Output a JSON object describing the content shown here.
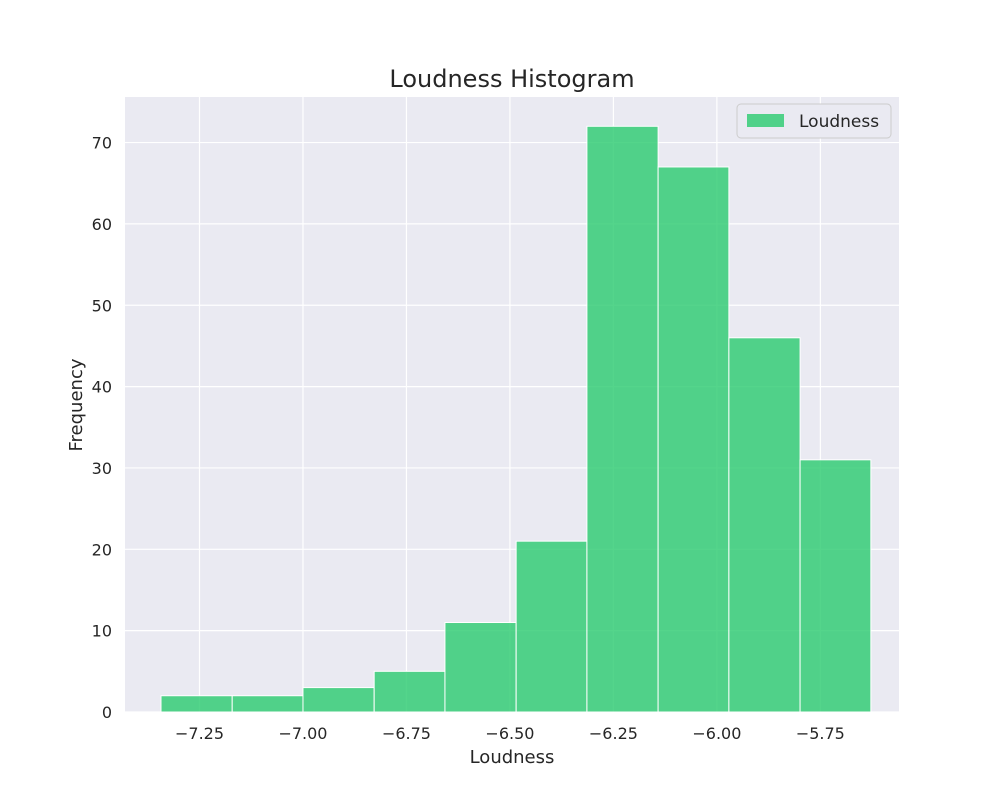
{
  "chart_data": {
    "type": "bar",
    "title": "Loudness Histogram",
    "xlabel": "Loudness",
    "ylabel": "Frequency",
    "xlim": [
      -7.43,
      -5.56
    ],
    "ylim": [
      0,
      75.6
    ],
    "x_ticks": [
      -7.25,
      -7.0,
      -6.75,
      -6.5,
      -6.25,
      -6.0,
      -5.75
    ],
    "x_tick_labels": [
      "−7.25",
      "−7.00",
      "−6.75",
      "−6.50",
      "−6.25",
      "−6.00",
      "−5.75"
    ],
    "y_ticks": [
      0,
      10,
      20,
      30,
      40,
      50,
      60,
      70
    ],
    "y_tick_labels": [
      "0",
      "10",
      "20",
      "30",
      "40",
      "50",
      "60",
      "70"
    ],
    "bin_edges": [
      -7.343,
      -7.171,
      -7.0,
      -6.828,
      -6.657,
      -6.485,
      -6.314,
      -6.142,
      -5.971,
      -5.799,
      -5.628
    ],
    "values": [
      2,
      2,
      3,
      5,
      11,
      21,
      72,
      67,
      46,
      31
    ],
    "series": [
      {
        "name": "Loudness",
        "values": [
          2,
          2,
          3,
          5,
          11,
          21,
          72,
          67,
          46,
          31
        ]
      }
    ],
    "grid": true,
    "legend_position": "top-right",
    "colors": {
      "bar": "#2ecc71",
      "plot_bg": "#eaeaf2",
      "grid": "#ffffff"
    }
  }
}
